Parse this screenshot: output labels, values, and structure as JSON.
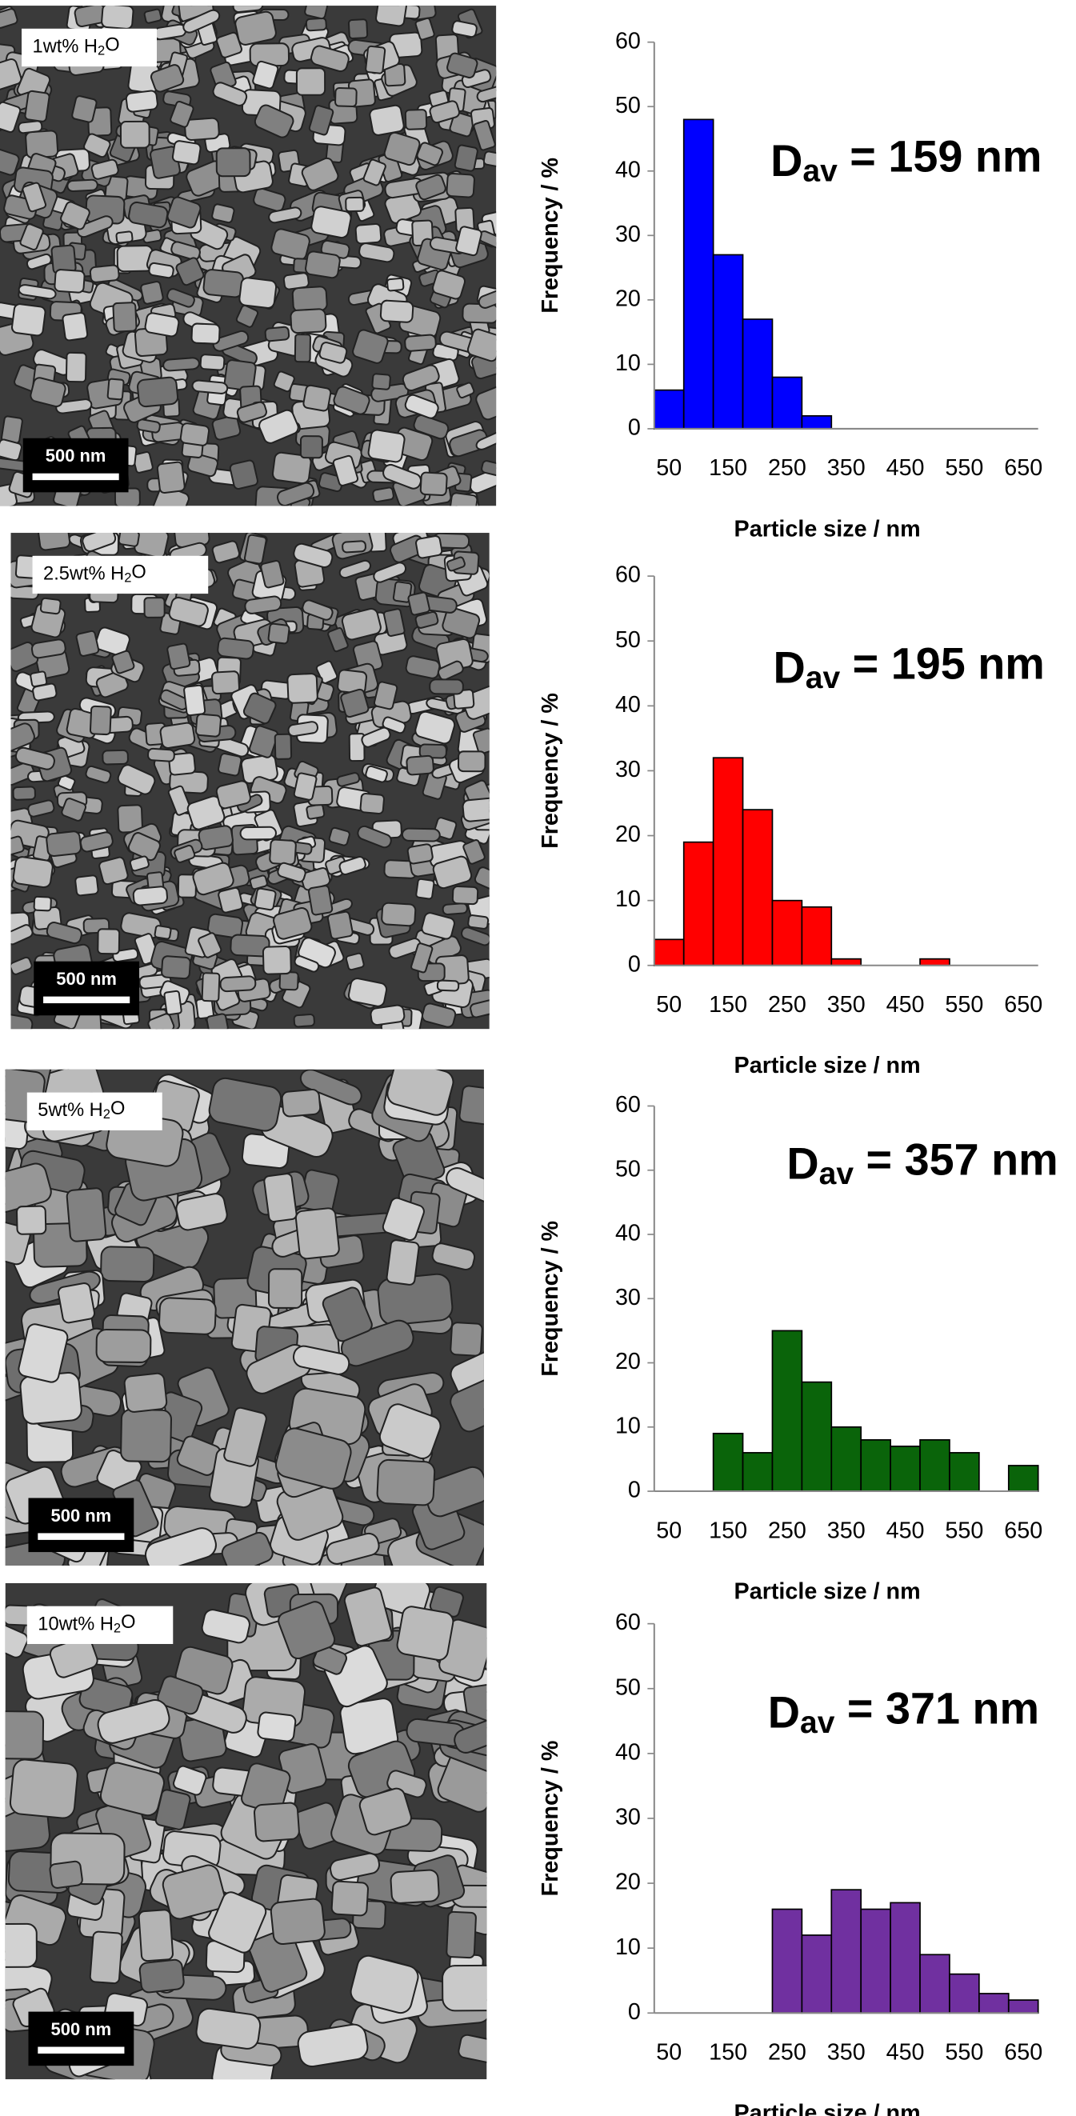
{
  "images": [
    {
      "label": {
        "text": "1wt% H",
        "subscript": "2",
        "suffix": "O"
      },
      "scale_bar": "500 nm"
    },
    {
      "label": {
        "text": "2.5wt% H",
        "subscript": "2",
        "suffix": "O"
      },
      "scale_bar": "500 nm"
    },
    {
      "label": {
        "text": "5wt% H",
        "subscript": "2",
        "suffix": "O"
      },
      "scale_bar": "500 nm"
    },
    {
      "label": {
        "text": "10wt% H",
        "subscript": "2",
        "suffix": "O"
      },
      "scale_bar": "500 nm"
    }
  ],
  "chart_data": [
    {
      "type": "bar",
      "annotation": {
        "text": "D",
        "subscript": "av",
        "suffix": " = 159 nm"
      },
      "xlabel": "Particle size / nm",
      "ylabel": "Frequency  / %",
      "categories": [
        50,
        null,
        150,
        null,
        250,
        null,
        350,
        null,
        450,
        null,
        550,
        null,
        650
      ],
      "values": [
        6,
        48,
        27,
        17,
        8,
        2,
        0,
        0,
        0,
        0,
        0,
        0,
        0
      ],
      "color": "#0000ff",
      "ylim": [
        0,
        60
      ],
      "yticks": [
        0,
        10,
        20,
        30,
        40,
        50,
        60
      ]
    },
    {
      "type": "bar",
      "annotation": {
        "text": "D",
        "subscript": "av",
        "suffix": " = 195 nm"
      },
      "xlabel": "Particle size / nm",
      "ylabel": "Frequency  /  %",
      "categories": [
        50,
        null,
        150,
        null,
        250,
        null,
        350,
        null,
        450,
        null,
        550,
        null,
        650
      ],
      "values": [
        4,
        19,
        32,
        24,
        10,
        9,
        1,
        0,
        0,
        1,
        0,
        0,
        0
      ],
      "color": "#ff0000",
      "ylim": [
        0,
        60
      ],
      "yticks": [
        0,
        10,
        20,
        30,
        40,
        50,
        60
      ]
    },
    {
      "type": "bar",
      "annotation": {
        "text": "D",
        "subscript": "av",
        "suffix": " = 357 nm"
      },
      "xlabel": "Particle size / nm",
      "ylabel": "Frequency  /  %",
      "categories": [
        50,
        null,
        150,
        null,
        250,
        null,
        350,
        null,
        450,
        null,
        550,
        null,
        650
      ],
      "values": [
        0,
        0,
        9,
        6,
        25,
        17,
        10,
        8,
        7,
        8,
        6,
        0,
        4
      ],
      "color": "#0a640a",
      "ylim": [
        0,
        60
      ],
      "yticks": [
        0,
        10,
        20,
        30,
        40,
        50,
        60
      ]
    },
    {
      "type": "bar",
      "annotation": {
        "text": "D",
        "subscript": "av",
        "suffix": " = 371 nm"
      },
      "xlabel": "Particle size / nm",
      "ylabel": "Frequency / %",
      "categories": [
        50,
        null,
        150,
        null,
        250,
        null,
        350,
        null,
        450,
        null,
        550,
        null,
        650
      ],
      "values": [
        0,
        0,
        0,
        0,
        16,
        12,
        19,
        16,
        17,
        9,
        6,
        3,
        2
      ],
      "color": "#7030a0",
      "ylim": [
        0,
        60
      ],
      "yticks": [
        0,
        10,
        20,
        30,
        40,
        50,
        60
      ]
    }
  ]
}
